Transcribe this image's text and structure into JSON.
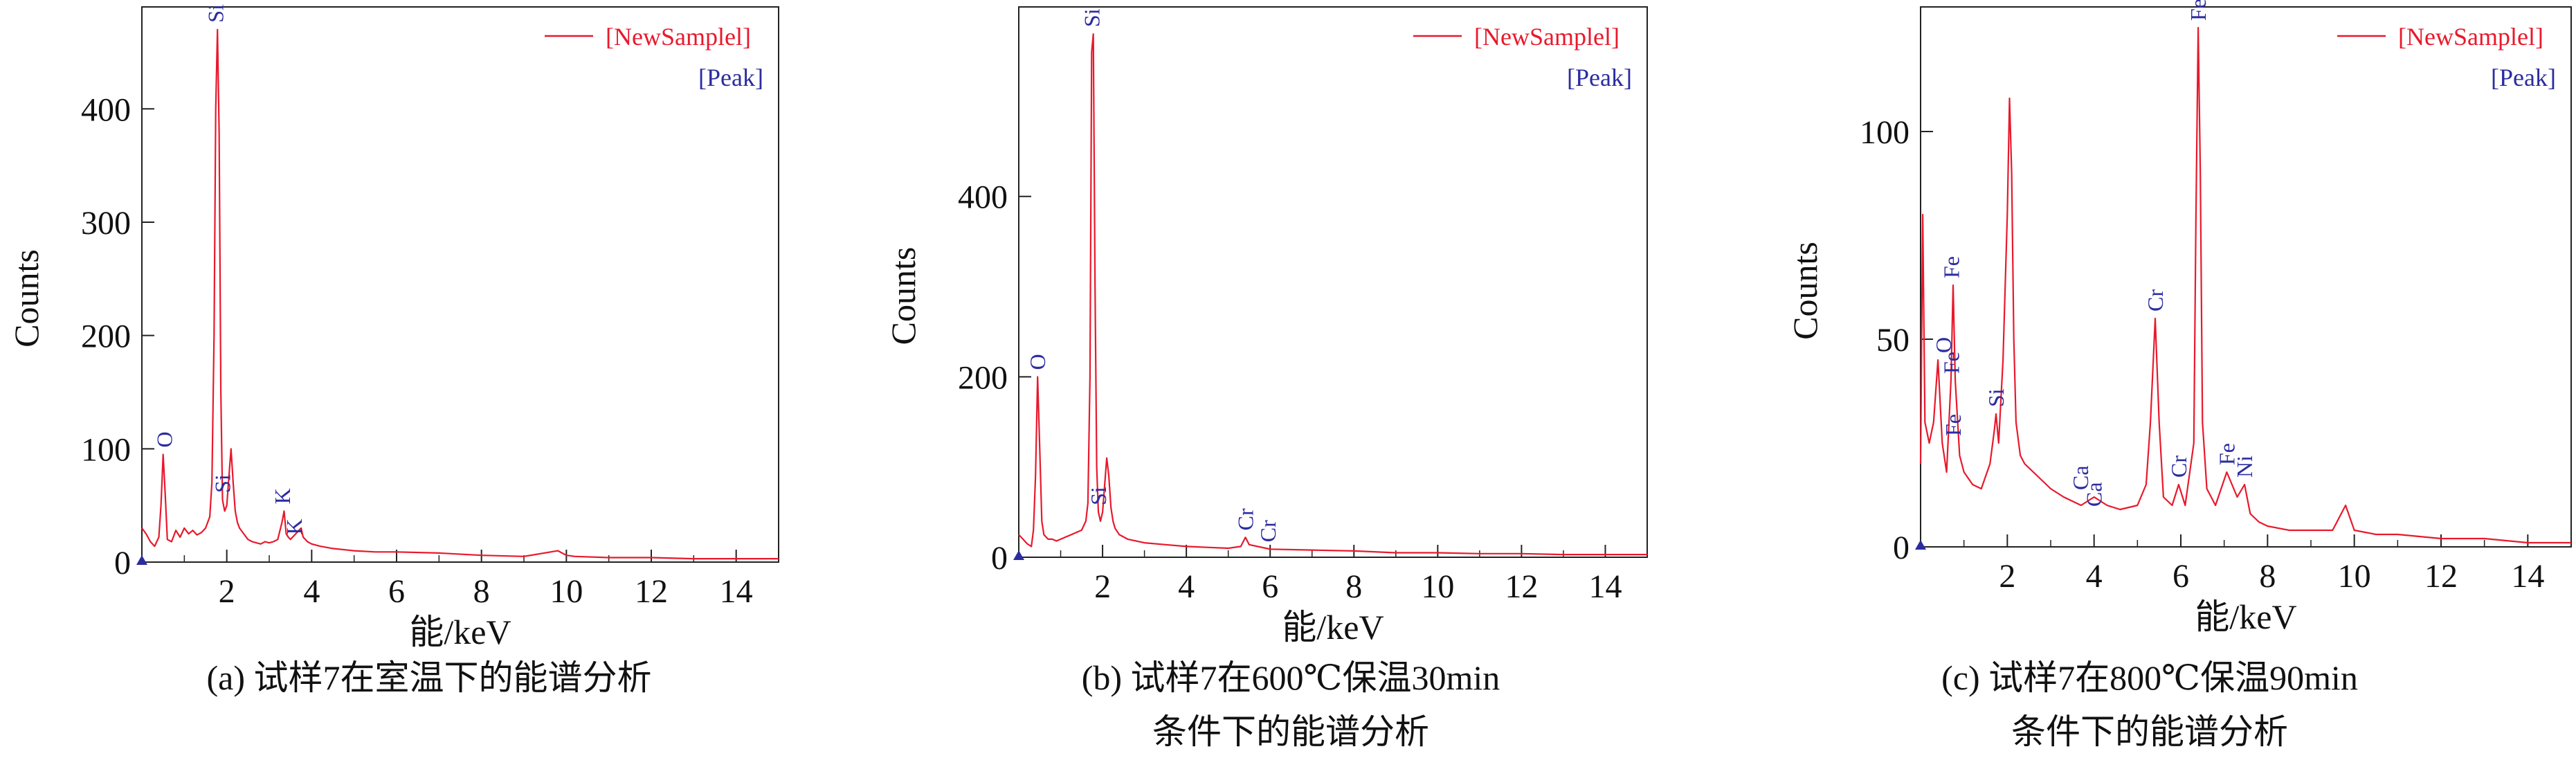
{
  "chart_data": [
    {
      "type": "line",
      "caption": [
        "(a) 试样7在室温下的能谱分析"
      ],
      "xlabel": "能/keV",
      "ylabel": "Counts",
      "xlim": [
        0,
        15
      ],
      "ylim": [
        0,
        490
      ],
      "xticks": [
        2,
        4,
        6,
        8,
        10,
        12,
        14
      ],
      "yticks": [
        0,
        100,
        200,
        300,
        400
      ],
      "legend": {
        "position": "top-right",
        "series": "[NewSamplel]",
        "peak": "[Peak]"
      },
      "series": [
        {
          "name": "[NewSamplel]",
          "x": [
            0.0,
            0.1,
            0.2,
            0.3,
            0.4,
            0.45,
            0.5,
            0.55,
            0.6,
            0.7,
            0.8,
            0.9,
            1.0,
            1.1,
            1.2,
            1.3,
            1.4,
            1.5,
            1.6,
            1.65,
            1.7,
            1.74,
            1.78,
            1.82,
            1.86,
            1.9,
            1.95,
            2.0,
            2.05,
            2.1,
            2.15,
            2.2,
            2.25,
            2.3,
            2.4,
            2.5,
            2.6,
            2.7,
            2.8,
            2.9,
            3.0,
            3.1,
            3.2,
            3.3,
            3.35,
            3.4,
            3.45,
            3.5,
            3.6,
            3.7,
            3.75,
            3.8,
            3.9,
            4.0,
            4.2,
            4.5,
            5.0,
            5.5,
            6.0,
            7.0,
            8.0,
            9.0,
            9.8,
            10.0,
            10.2,
            11.0,
            12.0,
            13.0,
            14.0,
            15.0
          ],
          "y": [
            30,
            25,
            18,
            14,
            22,
            50,
            95,
            60,
            20,
            18,
            28,
            22,
            30,
            25,
            28,
            24,
            26,
            30,
            40,
            70,
            200,
            400,
            470,
            380,
            150,
            55,
            45,
            50,
            75,
            100,
            70,
            45,
            35,
            30,
            25,
            20,
            18,
            17,
            16,
            18,
            17,
            18,
            20,
            35,
            45,
            25,
            22,
            20,
            24,
            28,
            30,
            22,
            18,
            16,
            14,
            12,
            10,
            9,
            9,
            8,
            6,
            5,
            10,
            6,
            5,
            4,
            4,
            3,
            3,
            3
          ]
        }
      ],
      "peaks": [
        {
          "label": "O",
          "x": 0.53,
          "y": 95
        },
        {
          "label": "Si",
          "x": 1.74,
          "y": 470
        },
        {
          "label": "Si",
          "x": 1.9,
          "y": 55
        },
        {
          "label": "K",
          "x": 3.31,
          "y": 45
        },
        {
          "label": "K",
          "x": 3.59,
          "y": 18
        }
      ]
    },
    {
      "type": "line",
      "caption": [
        "(b) 试样7在600℃保温30min",
        "条件下的能谱分析"
      ],
      "xlabel": "能/keV",
      "ylabel": "Counts",
      "xlim": [
        0,
        15
      ],
      "ylim": [
        0,
        610
      ],
      "xticks": [
        2,
        4,
        6,
        8,
        10,
        12,
        14
      ],
      "yticks": [
        0,
        200,
        400
      ],
      "legend": {
        "position": "top-right",
        "series": "[NewSamplel]",
        "peak": "[Peak]"
      },
      "series": [
        {
          "name": "[NewSamplel]",
          "x": [
            0.0,
            0.1,
            0.2,
            0.3,
            0.35,
            0.4,
            0.45,
            0.5,
            0.55,
            0.6,
            0.7,
            0.8,
            0.9,
            1.0,
            1.1,
            1.2,
            1.3,
            1.4,
            1.5,
            1.6,
            1.65,
            1.7,
            1.74,
            1.78,
            1.82,
            1.86,
            1.9,
            1.95,
            2.0,
            2.05,
            2.1,
            2.15,
            2.2,
            2.25,
            2.3,
            2.4,
            2.6,
            3.0,
            3.5,
            4.0,
            4.5,
            5.0,
            5.3,
            5.41,
            5.5,
            5.9,
            6.0,
            7.0,
            8.0,
            9.0,
            10.0,
            11.0,
            12.0,
            13.0,
            14.0,
            15.0
          ],
          "y": [
            25,
            20,
            15,
            12,
            30,
            90,
            200,
            120,
            40,
            25,
            20,
            20,
            18,
            20,
            22,
            24,
            26,
            28,
            30,
            40,
            60,
            200,
            560,
            580,
            300,
            100,
            50,
            40,
            50,
            80,
            110,
            90,
            55,
            40,
            32,
            25,
            20,
            16,
            14,
            12,
            11,
            10,
            12,
            22,
            14,
            10,
            9,
            8,
            7,
            5,
            5,
            4,
            4,
            3,
            3,
            3
          ]
        }
      ],
      "peaks": [
        {
          "label": "O",
          "x": 0.45,
          "y": 200
        },
        {
          "label": "Si",
          "x": 1.74,
          "y": 580
        },
        {
          "label": "Si",
          "x": 1.9,
          "y": 50
        },
        {
          "label": "Cr",
          "x": 5.41,
          "y": 22
        },
        {
          "label": "Cr",
          "x": 5.95,
          "y": 9
        }
      ]
    },
    {
      "type": "line",
      "caption": [
        "(c) 试样7在800℃保温90min",
        "条件下的能谱分析"
      ],
      "xlabel": "能/keV",
      "ylabel": "Counts",
      "xlim": [
        0,
        15
      ],
      "ylim": [
        0,
        130
      ],
      "xticks": [
        2,
        4,
        6,
        8,
        10,
        12,
        14
      ],
      "yticks": [
        0,
        50,
        100
      ],
      "legend": {
        "position": "top-right",
        "series": "[NewSamplel]",
        "peak": "[Peak]"
      },
      "series": [
        {
          "name": "[NewSamplel]",
          "x": [
            0.0,
            0.05,
            0.1,
            0.2,
            0.3,
            0.4,
            0.5,
            0.6,
            0.7,
            0.75,
            0.8,
            0.9,
            1.0,
            1.2,
            1.4,
            1.6,
            1.7,
            1.74,
            1.8,
            1.9,
            2.0,
            2.05,
            2.1,
            2.15,
            2.2,
            2.3,
            2.4,
            2.6,
            2.8,
            3.0,
            3.3,
            3.7,
            4.0,
            4.3,
            4.6,
            5.0,
            5.2,
            5.3,
            5.41,
            5.5,
            5.6,
            5.8,
            5.95,
            6.1,
            6.3,
            6.35,
            6.4,
            6.45,
            6.5,
            6.6,
            6.8,
            7.06,
            7.3,
            7.47,
            7.6,
            7.8,
            8.0,
            8.5,
            9.0,
            9.5,
            9.8,
            10.0,
            10.5,
            11.0,
            12.0,
            13.0,
            14.0,
            15.0
          ],
          "y": [
            20,
            80,
            30,
            25,
            30,
            45,
            25,
            18,
            40,
            63,
            40,
            22,
            18,
            15,
            14,
            20,
            28,
            32,
            25,
            45,
            80,
            108,
            90,
            50,
            30,
            22,
            20,
            18,
            16,
            14,
            12,
            10,
            12,
            10,
            9,
            10,
            15,
            30,
            55,
            30,
            12,
            10,
            15,
            10,
            25,
            80,
            125,
            90,
            30,
            14,
            10,
            18,
            12,
            15,
            8,
            6,
            5,
            4,
            4,
            4,
            10,
            4,
            3,
            3,
            2,
            2,
            1,
            1
          ]
        }
      ],
      "peaks": [
        {
          "label": "O",
          "x": 0.53,
          "y": 45
        },
        {
          "label": "Fe",
          "x": 0.71,
          "y": 63
        },
        {
          "label": "Fe",
          "x": 0.71,
          "y": 40
        },
        {
          "label": "Fe",
          "x": 0.75,
          "y": 25
        },
        {
          "label": "Si",
          "x": 1.74,
          "y": 32
        },
        {
          "label": "Ca",
          "x": 3.69,
          "y": 12
        },
        {
          "label": "Ca",
          "x": 4.0,
          "y": 8
        },
        {
          "label": "Cr",
          "x": 5.41,
          "y": 55
        },
        {
          "label": "Cr",
          "x": 5.95,
          "y": 15
        },
        {
          "label": "Fe",
          "x": 6.4,
          "y": 125
        },
        {
          "label": "Fe",
          "x": 7.06,
          "y": 18
        },
        {
          "label": "Ni",
          "x": 7.47,
          "y": 15
        }
      ]
    }
  ],
  "colors": {
    "series": "#e8192c",
    "peak": "#2c2ca0",
    "axis": "#222222",
    "text": "#111111"
  }
}
